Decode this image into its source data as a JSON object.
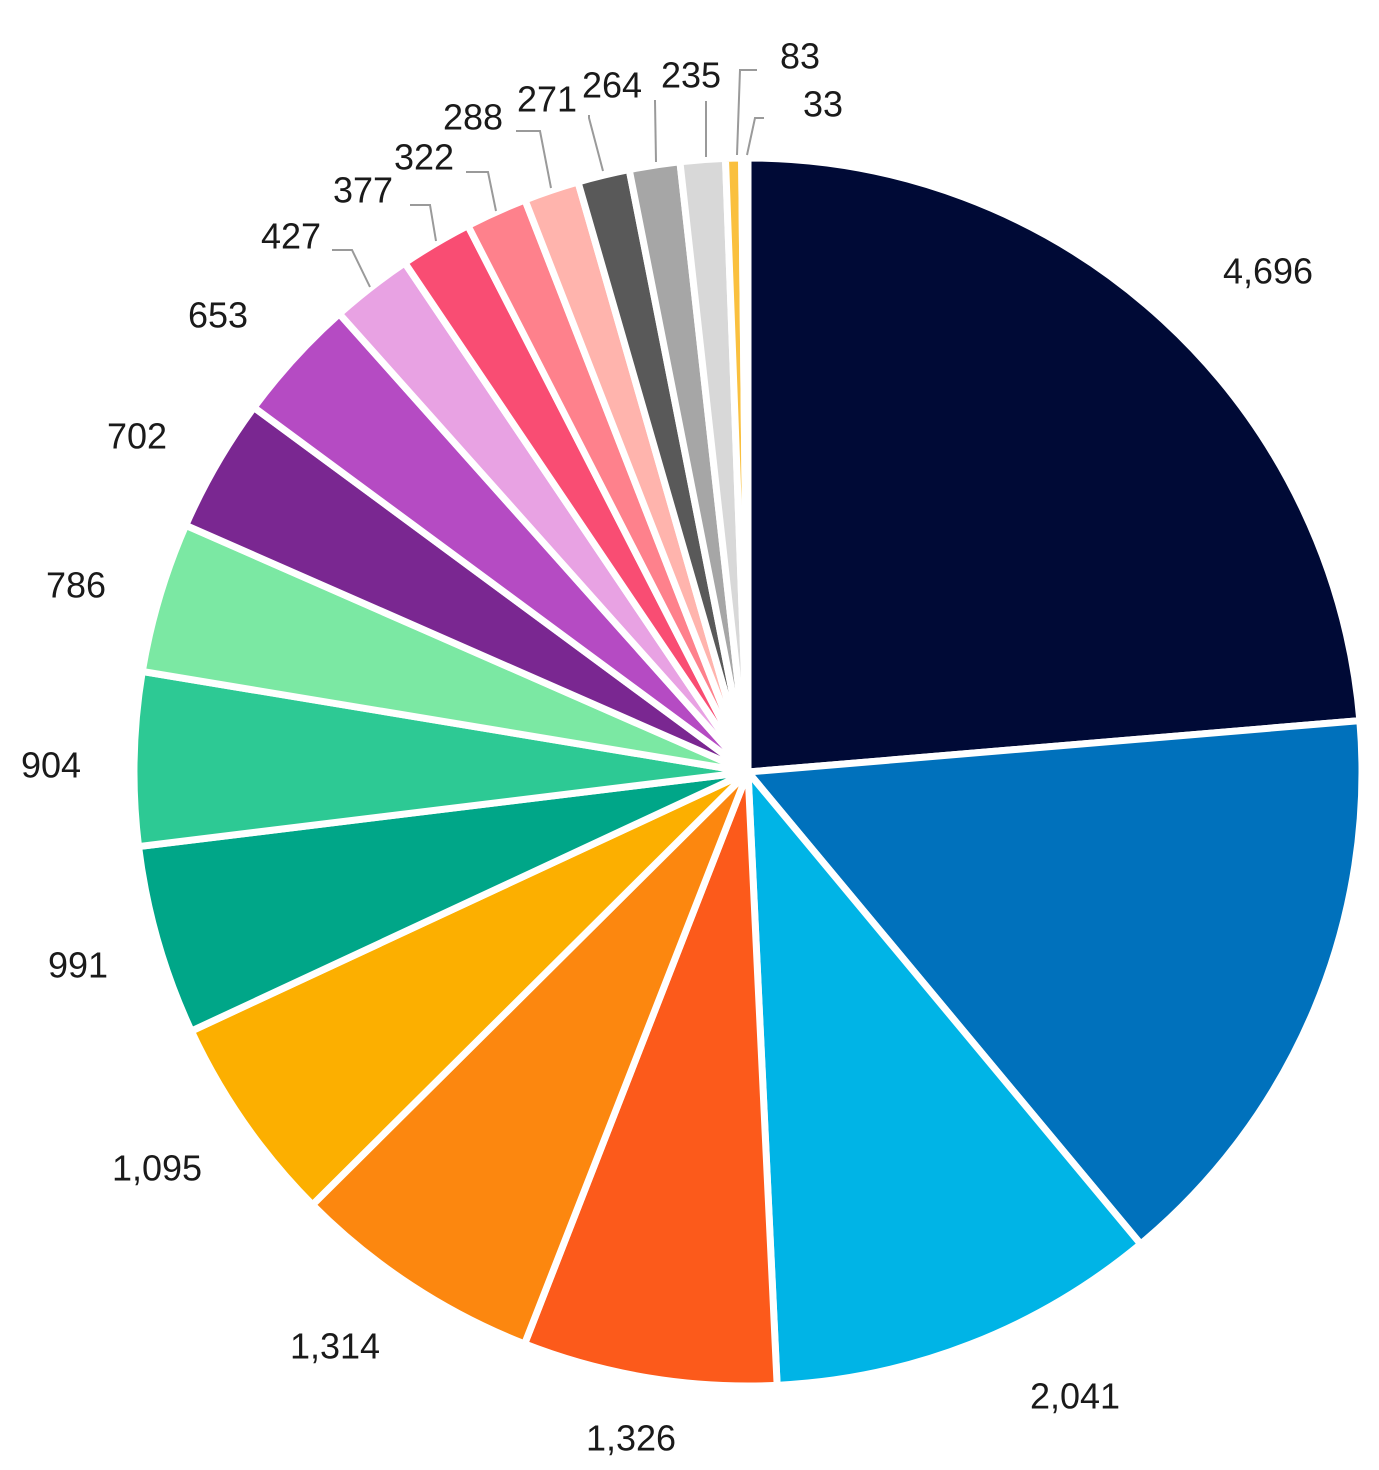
{
  "chart_data": {
    "type": "pie",
    "start": "12 o'clock",
    "direction": "clockwise",
    "values": [
      4696,
      3034,
      2041,
      1326,
      1314,
      1095,
      991,
      904,
      786,
      702,
      653,
      427,
      377,
      322,
      288,
      271,
      264,
      235,
      83,
      33
    ],
    "labels": [
      "4,696",
      "",
      "2,041",
      "1,326",
      "1,314",
      "1,095",
      "991",
      "904",
      "786",
      "702",
      "653",
      "427",
      "377",
      "322",
      "288",
      "271",
      "264",
      "235",
      "83",
      "33"
    ],
    "colors": [
      "#000A36",
      "#0071BC",
      "#00B4E6",
      "#FC5A1B",
      "#FC870F",
      "#FCAF00",
      "#00A688",
      "#2DC994",
      "#7BE8A3",
      "#7A2791",
      "#B54BC3",
      "#E8A2E3",
      "#F94D73",
      "#FE818C",
      "#FFB4AD",
      "#595959",
      "#A6A6A6",
      "#D8D8D8",
      "#FAC03E",
      "#F0DC82"
    ]
  }
}
